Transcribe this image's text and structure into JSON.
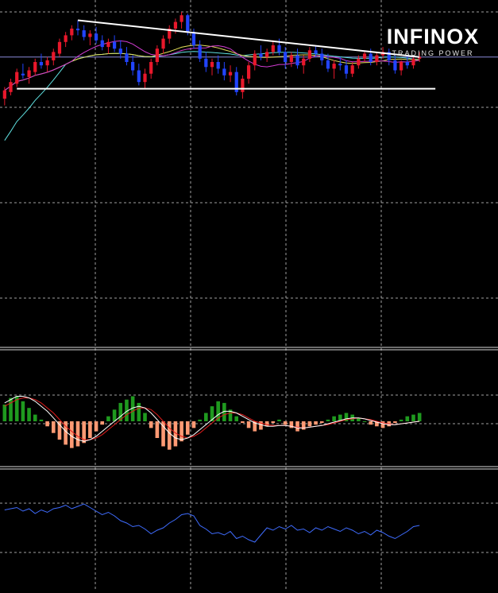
{
  "brand": {
    "name": "INFINOX",
    "tagline": "TRADING POWER",
    "accent": "#f2c500"
  },
  "colors": {
    "background": "#000000",
    "grid": "#c8c8c8",
    "separator": "#d9d9d9",
    "bull_candle": "#e8182b",
    "bear_candle": "#2244ff",
    "trendline": "#ffffff",
    "ma_fast": "#d23cd2",
    "ma_mid": "#e6e05a",
    "ma_slow": "#5fe0e0",
    "osc_positive": "#1f9a1f",
    "osc_negative": "#ff9a74",
    "signal_main": "#ffffff",
    "signal_secondary": "#e21b1b",
    "lower_line": "#3f6cff",
    "current_price_line": "#8a8ad8"
  },
  "chart_data": [
    {
      "type": "candlestick",
      "title": "",
      "xlabel": "",
      "ylabel": "",
      "grid": true,
      "ylim": [
        0,
        100
      ],
      "candles": [
        [
          48,
          55,
          44,
          53
        ],
        [
          52,
          60,
          50,
          58
        ],
        [
          57,
          66,
          55,
          64
        ],
        [
          63,
          69,
          60,
          62
        ],
        [
          61,
          67,
          57,
          65
        ],
        [
          64,
          72,
          62,
          70
        ],
        [
          70,
          75,
          66,
          68
        ],
        [
          68,
          73,
          64,
          71
        ],
        [
          71,
          78,
          68,
          76
        ],
        [
          75,
          84,
          73,
          82
        ],
        [
          82,
          88,
          79,
          86
        ],
        [
          86,
          92,
          83,
          90
        ],
        [
          90,
          95,
          86,
          89
        ],
        [
          89,
          92,
          83,
          85
        ],
        [
          85,
          89,
          80,
          87
        ],
        [
          87,
          91,
          81,
          83
        ],
        [
          83,
          86,
          77,
          79
        ],
        [
          79,
          84,
          75,
          82
        ],
        [
          82,
          86,
          76,
          78
        ],
        [
          78,
          83,
          72,
          75
        ],
        [
          75,
          79,
          68,
          70
        ],
        [
          70,
          74,
          62,
          65
        ],
        [
          65,
          69,
          56,
          58
        ],
        [
          58,
          66,
          54,
          63
        ],
        [
          63,
          72,
          60,
          70
        ],
        [
          70,
          80,
          68,
          78
        ],
        [
          78,
          86,
          75,
          84
        ],
        [
          84,
          92,
          81,
          90
        ],
        [
          90,
          96,
          87,
          94
        ],
        [
          94,
          100,
          90,
          98
        ],
        [
          98,
          99,
          86,
          88
        ],
        [
          88,
          90,
          78,
          80
        ],
        [
          80,
          83,
          70,
          72
        ],
        [
          72,
          76,
          64,
          67
        ],
        [
          67,
          72,
          62,
          70
        ],
        [
          70,
          74,
          63,
          66
        ],
        [
          66,
          70,
          59,
          62
        ],
        [
          62,
          68,
          58,
          64
        ],
        [
          64,
          67,
          50,
          52
        ],
        [
          52,
          62,
          48,
          60
        ],
        [
          60,
          70,
          57,
          68
        ],
        [
          68,
          77,
          65,
          75
        ],
        [
          75,
          80,
          71,
          73
        ],
        [
          73,
          78,
          70,
          76
        ],
        [
          76,
          83,
          74,
          80
        ],
        [
          80,
          84,
          74,
          76
        ],
        [
          76,
          79,
          66,
          70
        ],
        [
          70,
          76,
          67,
          74
        ],
        [
          74,
          78,
          66,
          68
        ],
        [
          68,
          74,
          63,
          72
        ],
        [
          72,
          79,
          70,
          77
        ],
        [
          77,
          80,
          73,
          75
        ],
        [
          75,
          78,
          68,
          71
        ],
        [
          71,
          75,
          64,
          66
        ],
        [
          66,
          71,
          60,
          69
        ],
        [
          69,
          73,
          65,
          68
        ],
        [
          68,
          71,
          60,
          63
        ],
        [
          63,
          70,
          61,
          68
        ],
        [
          68,
          74,
          66,
          72
        ],
        [
          72,
          77,
          70,
          75
        ],
        [
          75,
          78,
          68,
          70
        ],
        [
          70,
          76,
          68,
          74
        ],
        [
          74,
          79,
          72,
          76
        ],
        [
          76,
          78,
          68,
          71
        ],
        [
          71,
          74,
          63,
          65
        ],
        [
          65,
          71,
          62,
          70
        ],
        [
          70,
          74,
          66,
          68
        ],
        [
          68,
          73,
          66,
          72
        ],
        [
          72,
          76,
          70,
          73
        ]
      ]
    },
    {
      "type": "bar+line",
      "title": "",
      "xlabel": "",
      "ylabel": "",
      "grid": true,
      "histogram": [
        20,
        28,
        30,
        24,
        16,
        8,
        2,
        -6,
        -14,
        -22,
        -28,
        -32,
        -30,
        -26,
        -20,
        -12,
        -4,
        6,
        14,
        22,
        26,
        30,
        22,
        10,
        -8,
        -20,
        -30,
        -34,
        -30,
        -24,
        -16,
        -8,
        2,
        10,
        18,
        24,
        22,
        14,
        6,
        -2,
        -8,
        -12,
        -10,
        -6,
        -2,
        2,
        -4,
        -8,
        -12,
        -10,
        -6,
        -4,
        -2,
        2,
        6,
        8,
        10,
        8,
        4,
        0,
        -4,
        -6,
        -8,
        -6,
        -2,
        2,
        6,
        8,
        10
      ],
      "signal_main": [
        22,
        26,
        30,
        30,
        28,
        24,
        18,
        12,
        4,
        -4,
        -12,
        -18,
        -22,
        -24,
        -22,
        -18,
        -12,
        -6,
        0,
        6,
        12,
        16,
        18,
        16,
        10,
        2,
        -6,
        -14,
        -20,
        -22,
        -20,
        -16,
        -10,
        -4,
        2,
        8,
        12,
        12,
        10,
        6,
        2,
        -2,
        -4,
        -6,
        -6,
        -5,
        -5,
        -6,
        -8,
        -8,
        -7,
        -6,
        -5,
        -3,
        -1,
        1,
        3,
        4,
        4,
        3,
        1,
        -1,
        -3,
        -4,
        -4,
        -3,
        -2,
        -1,
        0
      ],
      "signal_secondary": [
        18,
        22,
        26,
        28,
        28,
        26,
        22,
        16,
        10,
        2,
        -6,
        -12,
        -18,
        -22,
        -22,
        -20,
        -16,
        -10,
        -4,
        2,
        8,
        12,
        16,
        16,
        14,
        8,
        0,
        -8,
        -14,
        -18,
        -20,
        -18,
        -14,
        -8,
        -2,
        4,
        8,
        10,
        10,
        8,
        4,
        0,
        -2,
        -4,
        -5,
        -5,
        -5,
        -6,
        -7,
        -8,
        -7,
        -6,
        -5,
        -4,
        -2,
        0,
        2,
        3,
        4,
        3,
        2,
        0,
        -2,
        -3,
        -4,
        -3,
        -2,
        -1,
        0
      ]
    },
    {
      "type": "line",
      "title": "",
      "xlabel": "",
      "ylabel": "",
      "grid": true,
      "ylim": [
        0,
        100
      ],
      "values": [
        78,
        80,
        82,
        76,
        80,
        72,
        78,
        74,
        80,
        82,
        86,
        80,
        84,
        88,
        82,
        76,
        70,
        74,
        68,
        60,
        56,
        50,
        52,
        46,
        38,
        44,
        48,
        56,
        62,
        70,
        72,
        68,
        52,
        46,
        38,
        40,
        36,
        42,
        30,
        34,
        28,
        24,
        36,
        48,
        44,
        50,
        46,
        52,
        44,
        46,
        40,
        48,
        44,
        50,
        46,
        42,
        48,
        44,
        38,
        42,
        36,
        44,
        40,
        34,
        30,
        36,
        42,
        50,
        52
      ]
    }
  ]
}
